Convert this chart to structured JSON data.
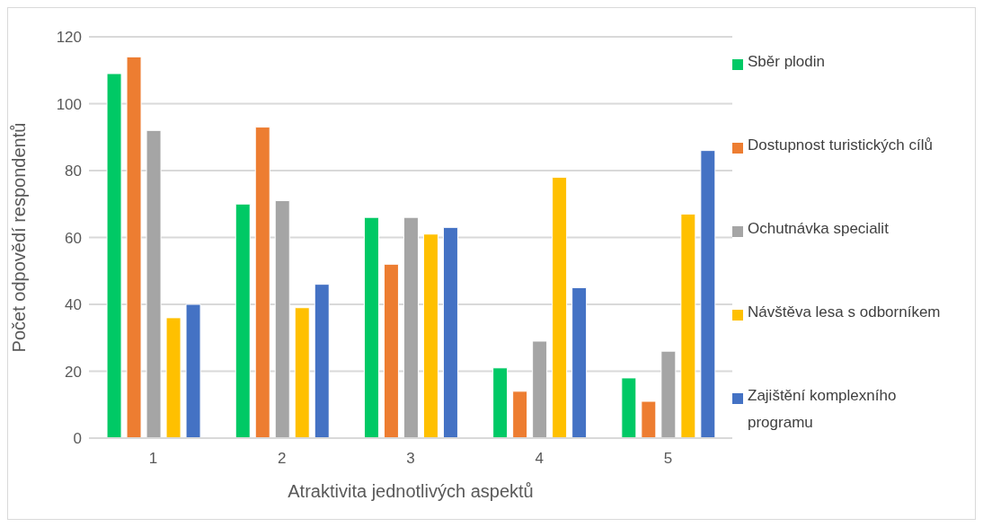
{
  "chart_data": {
    "type": "bar",
    "xlabel": "Atraktivita jednotlivých aspektů",
    "ylabel": "Počet odpovědí respondentů",
    "categories": [
      "1",
      "2",
      "3",
      "4",
      "5"
    ],
    "series": [
      {
        "name": "Sběr plodin",
        "color": "#00c965",
        "values": [
          109,
          70,
          66,
          21,
          18
        ]
      },
      {
        "name": "Dostupnost turistických cílů",
        "color": "#ed7d31",
        "values": [
          114,
          93,
          52,
          14,
          11
        ]
      },
      {
        "name": "Ochutnávka specialit",
        "color": "#a5a5a5",
        "values": [
          92,
          71,
          66,
          29,
          26
        ]
      },
      {
        "name": "Návštěva lesa s odborníkem",
        "color": "#ffc000",
        "values": [
          36,
          39,
          61,
          78,
          67
        ]
      },
      {
        "name": "Zajištění komplexního programu",
        "color": "#4472c4",
        "values": [
          40,
          46,
          63,
          45,
          86
        ]
      }
    ],
    "ylim": [
      0,
      120
    ],
    "yticks": [
      0,
      20,
      40,
      60,
      80,
      100,
      120
    ],
    "grid": "y",
    "legend": "right"
  }
}
